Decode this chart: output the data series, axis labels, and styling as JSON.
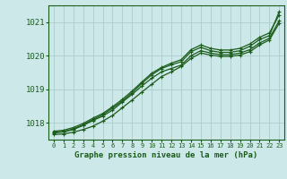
{
  "bg_color": "#cde8e8",
  "grid_color": "#b0d0d0",
  "line_color": "#1a5c1a",
  "marker_color": "#1a5c1a",
  "xlabel": "Graphe pression niveau de la mer (hPa)",
  "xlabel_color": "#1a5c1a",
  "xlim": [
    -0.5,
    23.5
  ],
  "ylim": [
    1017.5,
    1021.5
  ],
  "yticks": [
    1018,
    1019,
    1020,
    1021
  ],
  "xticks": [
    0,
    1,
    2,
    3,
    4,
    5,
    6,
    7,
    8,
    9,
    10,
    11,
    12,
    13,
    14,
    15,
    16,
    17,
    18,
    19,
    20,
    21,
    22,
    23
  ],
  "series": [
    [
      1017.65,
      1017.67,
      1017.72,
      1017.8,
      1017.9,
      1018.05,
      1018.22,
      1018.45,
      1018.68,
      1018.92,
      1019.15,
      1019.38,
      1019.52,
      1019.68,
      1019.92,
      1020.08,
      1020.02,
      1019.98,
      1019.98,
      1020.02,
      1020.12,
      1020.32,
      1020.47,
      1020.97
    ],
    [
      1017.7,
      1017.73,
      1017.8,
      1017.92,
      1018.07,
      1018.2,
      1018.38,
      1018.62,
      1018.85,
      1019.1,
      1019.33,
      1019.52,
      1019.62,
      1019.72,
      1020.0,
      1020.15,
      1020.08,
      1020.03,
      1020.03,
      1020.08,
      1020.18,
      1020.38,
      1020.52,
      1021.05
    ],
    [
      1017.75,
      1017.78,
      1017.86,
      1017.98,
      1018.14,
      1018.28,
      1018.48,
      1018.7,
      1018.95,
      1019.22,
      1019.48,
      1019.65,
      1019.78,
      1019.88,
      1020.18,
      1020.32,
      1020.22,
      1020.17,
      1020.17,
      1020.22,
      1020.35,
      1020.55,
      1020.68,
      1021.22
    ],
    [
      1017.72,
      1017.74,
      1017.82,
      1017.94,
      1018.1,
      1018.24,
      1018.44,
      1018.65,
      1018.9,
      1019.18,
      1019.43,
      1019.62,
      1019.73,
      1019.82,
      1020.12,
      1020.25,
      1020.15,
      1020.1,
      1020.1,
      1020.15,
      1020.28,
      1020.48,
      1020.6,
      1021.32
    ]
  ]
}
